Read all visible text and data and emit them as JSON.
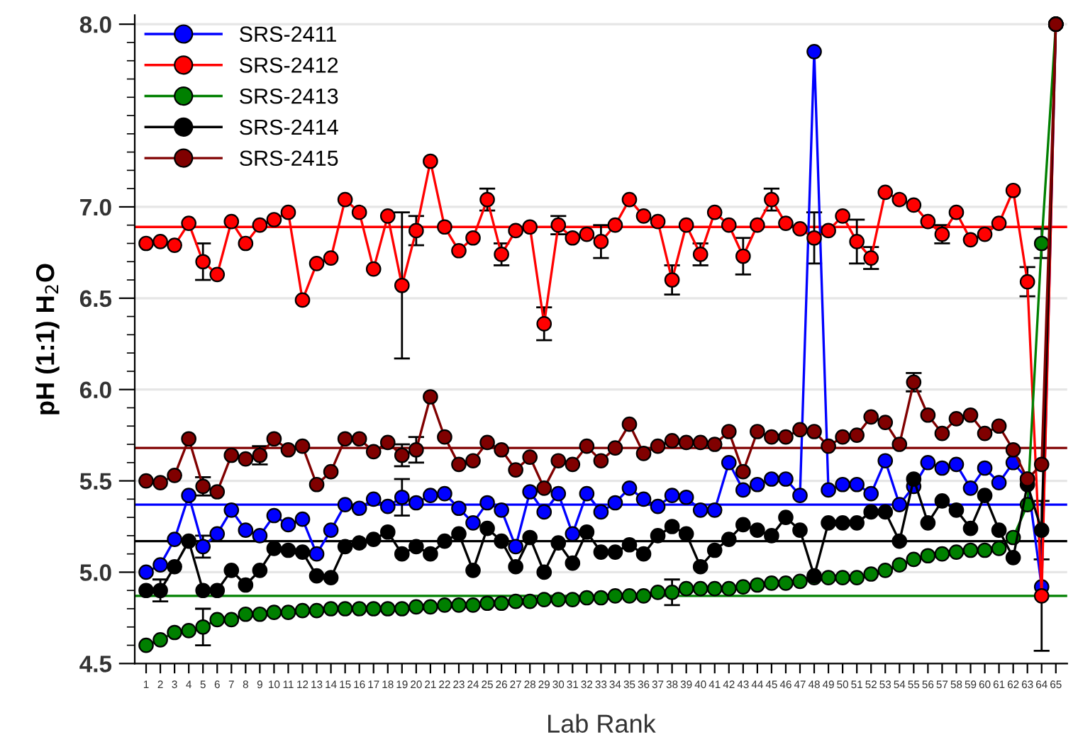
{
  "chart_data": {
    "type": "line",
    "xlabel": "Lab Rank",
    "ylabel": "pH (1:1) H$_{2}$O",
    "categories": [
      "1",
      "2",
      "3",
      "4",
      "5",
      "6",
      "7",
      "8",
      "9",
      "10",
      "11",
      "12",
      "13",
      "14",
      "15",
      "16",
      "17",
      "18",
      "19",
      "20",
      "21",
      "22",
      "23",
      "24",
      "25",
      "26",
      "27",
      "28",
      "29",
      "30",
      "31",
      "32",
      "33",
      "34",
      "35",
      "36",
      "37",
      "38",
      "39",
      "40",
      "41",
      "42",
      "43",
      "44",
      "45",
      "46",
      "47",
      "48",
      "49",
      "50",
      "51",
      "52",
      "53",
      "54",
      "55",
      "56",
      "57",
      "58",
      "59",
      "60",
      "61",
      "62",
      "63",
      "64",
      "65"
    ],
    "ylim": [
      4.5,
      8.05
    ],
    "yticks": [
      {
        "value": 4.5,
        "label": "4.5"
      },
      {
        "value": 5.0,
        "label": "5.0"
      },
      {
        "value": 5.5,
        "label": "5.5"
      },
      {
        "value": 6.0,
        "label": "6.0"
      },
      {
        "value": 6.5,
        "label": "6.5"
      },
      {
        "value": 7.0,
        "label": "7.0"
      },
      {
        "value": 8.0,
        "label": "8.0"
      }
    ],
    "grid": "y",
    "legend": "top left",
    "marker": "circle",
    "line_style": "solid",
    "series": [
      {
        "name": "SRS-2411",
        "color": "#0000ff",
        "values": [
          5.0,
          5.04,
          5.18,
          5.42,
          5.14,
          5.21,
          5.34,
          5.23,
          5.2,
          5.31,
          5.26,
          5.29,
          5.1,
          5.23,
          5.37,
          5.35,
          5.4,
          5.36,
          5.41,
          5.38,
          5.42,
          5.43,
          5.35,
          5.27,
          5.38,
          5.34,
          5.14,
          5.44,
          5.33,
          5.43,
          5.21,
          5.43,
          5.33,
          5.38,
          5.46,
          5.4,
          5.36,
          5.42,
          5.41,
          5.34,
          5.34,
          5.6,
          5.45,
          5.48,
          5.51,
          5.51,
          5.42,
          7.85,
          5.45,
          5.48,
          5.48,
          5.43,
          5.61,
          5.37,
          5.47,
          5.6,
          5.57,
          5.59,
          5.46,
          5.57,
          5.49,
          5.6,
          5.51,
          4.92,
          8.0
        ],
        "errors": [
          null,
          null,
          null,
          null,
          0.06,
          null,
          null,
          null,
          null,
          null,
          null,
          null,
          null,
          null,
          null,
          null,
          null,
          null,
          0.1,
          null,
          null,
          null,
          null,
          null,
          null,
          null,
          null,
          null,
          null,
          null,
          null,
          null,
          null,
          null,
          null,
          null,
          null,
          null,
          null,
          null,
          null,
          null,
          null,
          null,
          null,
          null,
          null,
          null,
          null,
          null,
          null,
          null,
          null,
          null,
          null,
          null,
          null,
          null,
          null,
          null,
          null,
          null,
          null,
          null,
          null
        ]
      },
      {
        "name": "SRS-2412",
        "color": "#ff0000",
        "values": [
          6.8,
          6.81,
          6.79,
          6.91,
          6.7,
          6.63,
          6.92,
          6.8,
          6.9,
          6.93,
          6.97,
          6.49,
          6.69,
          6.72,
          7.04,
          6.97,
          6.66,
          6.95,
          6.57,
          6.87,
          7.25,
          6.89,
          6.76,
          6.83,
          7.04,
          6.74,
          6.87,
          6.89,
          6.36,
          6.9,
          6.83,
          6.85,
          6.81,
          6.9,
          7.04,
          6.95,
          6.92,
          6.6,
          6.9,
          6.74,
          6.97,
          6.9,
          6.73,
          6.9,
          7.04,
          6.91,
          6.88,
          6.83,
          6.87,
          6.95,
          6.81,
          6.72,
          7.08,
          7.04,
          7.01,
          6.92,
          6.85,
          6.97,
          6.82,
          6.85,
          6.91,
          7.09,
          6.59,
          4.87,
          8.0
        ],
        "errors": [
          null,
          null,
          null,
          null,
          0.1,
          null,
          null,
          null,
          null,
          null,
          null,
          null,
          null,
          null,
          null,
          null,
          null,
          null,
          0.4,
          0.08,
          null,
          null,
          null,
          null,
          0.06,
          0.06,
          null,
          null,
          0.09,
          0.05,
          null,
          null,
          0.09,
          null,
          null,
          null,
          null,
          0.08,
          null,
          0.06,
          null,
          null,
          0.1,
          null,
          0.06,
          null,
          null,
          0.14,
          null,
          null,
          0.12,
          0.06,
          null,
          null,
          null,
          null,
          0.05,
          null,
          null,
          null,
          null,
          null,
          0.08,
          0.3,
          null
        ]
      },
      {
        "name": "SRS-2413",
        "color": "#008000",
        "values": [
          4.6,
          4.63,
          4.67,
          4.68,
          4.7,
          4.74,
          4.74,
          4.77,
          4.77,
          4.78,
          4.78,
          4.79,
          4.79,
          4.8,
          4.8,
          4.8,
          4.8,
          4.8,
          4.8,
          4.81,
          4.81,
          4.82,
          4.82,
          4.82,
          4.83,
          4.83,
          4.84,
          4.84,
          4.85,
          4.85,
          4.85,
          4.86,
          4.86,
          4.87,
          4.87,
          4.87,
          4.89,
          4.89,
          4.91,
          4.91,
          4.91,
          4.91,
          4.92,
          4.93,
          4.94,
          4.94,
          4.95,
          4.97,
          4.97,
          4.97,
          4.97,
          4.99,
          5.01,
          5.04,
          5.07,
          5.09,
          5.1,
          5.11,
          5.12,
          5.12,
          5.13,
          5.19,
          5.37,
          6.8,
          8.0
        ],
        "errors": [
          null,
          null,
          null,
          null,
          0.1,
          null,
          null,
          null,
          null,
          null,
          null,
          null,
          null,
          null,
          null,
          null,
          null,
          null,
          null,
          null,
          null,
          null,
          null,
          null,
          null,
          null,
          null,
          null,
          null,
          null,
          null,
          null,
          null,
          null,
          null,
          null,
          null,
          0.07,
          null,
          null,
          null,
          null,
          null,
          null,
          null,
          null,
          null,
          null,
          null,
          null,
          null,
          null,
          null,
          null,
          null,
          null,
          null,
          null,
          null,
          null,
          null,
          null,
          null,
          0.08,
          null
        ]
      },
      {
        "name": "SRS-2414",
        "color": "#000000",
        "values": [
          4.9,
          4.9,
          5.03,
          5.17,
          4.9,
          4.9,
          5.01,
          4.93,
          5.01,
          5.13,
          5.12,
          5.11,
          4.98,
          4.97,
          5.14,
          5.16,
          5.18,
          5.22,
          5.1,
          5.14,
          5.1,
          5.17,
          5.21,
          5.01,
          5.24,
          5.17,
          5.03,
          5.19,
          5.0,
          5.16,
          5.05,
          5.22,
          5.11,
          5.11,
          5.15,
          5.1,
          5.2,
          5.25,
          5.21,
          5.03,
          5.12,
          5.18,
          5.26,
          5.23,
          5.2,
          5.3,
          5.23,
          4.98,
          5.27,
          5.27,
          5.27,
          5.33,
          5.33,
          5.17,
          5.51,
          5.27,
          5.39,
          5.34,
          5.24,
          5.42,
          5.23,
          5.08,
          5.48,
          5.23,
          8.0
        ],
        "errors": [
          null,
          0.06,
          null,
          null,
          null,
          null,
          null,
          null,
          null,
          null,
          null,
          null,
          null,
          null,
          null,
          null,
          null,
          null,
          null,
          null,
          null,
          null,
          null,
          null,
          null,
          null,
          null,
          null,
          null,
          null,
          null,
          null,
          null,
          null,
          null,
          null,
          null,
          null,
          null,
          null,
          null,
          null,
          null,
          null,
          null,
          null,
          null,
          null,
          null,
          null,
          null,
          null,
          null,
          null,
          null,
          null,
          null,
          null,
          null,
          null,
          null,
          null,
          null,
          0.16,
          null
        ]
      },
      {
        "name": "SRS-2415",
        "color": "#800000",
        "values": [
          5.5,
          5.49,
          5.53,
          5.73,
          5.47,
          5.44,
          5.64,
          5.62,
          5.64,
          5.73,
          5.67,
          5.69,
          5.48,
          5.55,
          5.73,
          5.73,
          5.66,
          5.71,
          5.64,
          5.67,
          5.96,
          5.74,
          5.59,
          5.61,
          5.71,
          5.67,
          5.56,
          5.63,
          5.46,
          5.61,
          5.59,
          5.69,
          5.61,
          5.68,
          5.81,
          5.65,
          5.69,
          5.72,
          5.71,
          5.71,
          5.7,
          5.77,
          5.55,
          5.77,
          5.74,
          5.74,
          5.78,
          5.77,
          5.69,
          5.74,
          5.75,
          5.85,
          5.82,
          5.7,
          6.04,
          5.86,
          5.76,
          5.84,
          5.86,
          5.76,
          5.8,
          5.67,
          5.51,
          5.59,
          8.0
        ],
        "errors": [
          null,
          null,
          null,
          null,
          0.05,
          null,
          null,
          null,
          0.05,
          null,
          null,
          null,
          null,
          null,
          null,
          null,
          null,
          null,
          0.06,
          0.07,
          null,
          null,
          null,
          null,
          null,
          null,
          null,
          null,
          null,
          null,
          null,
          null,
          null,
          null,
          null,
          null,
          null,
          null,
          null,
          null,
          null,
          null,
          null,
          null,
          null,
          null,
          null,
          null,
          null,
          null,
          null,
          null,
          null,
          null,
          0.05,
          null,
          null,
          null,
          null,
          null,
          null,
          null,
          null,
          null,
          null
        ]
      }
    ],
    "ref_lines": [
      {
        "axis": "y",
        "value": 5.37,
        "color": "#0000ff"
      },
      {
        "axis": "y",
        "value": 6.89,
        "color": "#ff0000"
      },
      {
        "axis": "y",
        "value": 4.87,
        "color": "#008000"
      },
      {
        "axis": "y",
        "value": 5.17,
        "color": "#000000"
      },
      {
        "axis": "y",
        "value": 5.68,
        "color": "#800000"
      }
    ]
  }
}
